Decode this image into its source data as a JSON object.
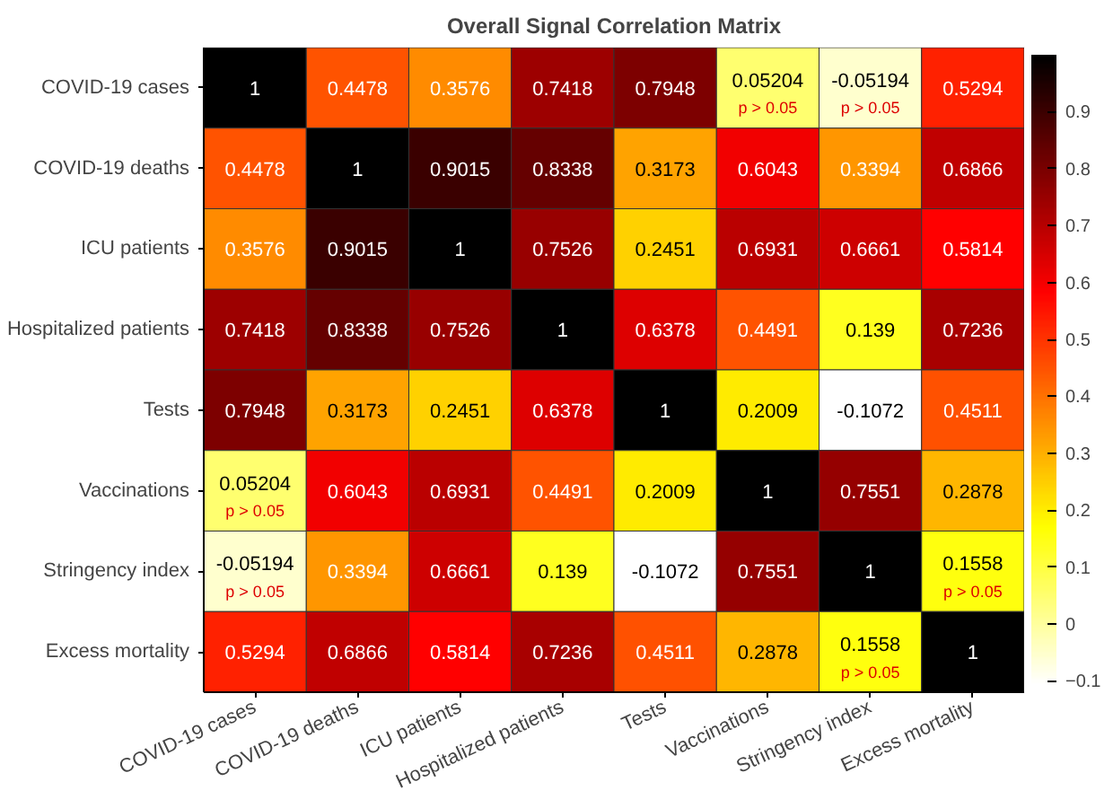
{
  "chart_data": {
    "type": "heatmap",
    "title": "Overall Signal Correlation Matrix",
    "categories": [
      "COVID-19 cases",
      "COVID-19 deaths",
      "ICU patients",
      "Hospitalized patients",
      "Tests",
      "Vaccinations",
      "Stringency index",
      "Excess mortality"
    ],
    "y_categories": [
      "COVID-19 cases",
      "COVID-19 deaths",
      "ICU patients",
      "Hospitalized patients",
      "Tests",
      "Vaccinations",
      "Stringency index",
      "Excess mortality"
    ],
    "cells": [
      [
        1,
        0.4478,
        0.3576,
        0.7418,
        0.7948,
        0.05204,
        -0.05194,
        0.5294
      ],
      [
        0.4478,
        1,
        0.9015,
        0.8338,
        0.3173,
        0.6043,
        0.3394,
        0.6866
      ],
      [
        0.3576,
        0.9015,
        1,
        0.7526,
        0.2451,
        0.6931,
        0.6661,
        0.5814
      ],
      [
        0.7418,
        0.8338,
        0.7526,
        1,
        0.6378,
        0.4491,
        0.139,
        0.7236
      ],
      [
        0.7948,
        0.3173,
        0.2451,
        0.6378,
        1,
        0.2009,
        -0.1072,
        0.4511
      ],
      [
        0.05204,
        0.6043,
        0.6931,
        0.4491,
        0.2009,
        1,
        0.7551,
        0.2878
      ],
      [
        -0.05194,
        0.3394,
        0.6661,
        0.139,
        -0.1072,
        0.7551,
        1,
        0.1558
      ],
      [
        0.5294,
        0.6866,
        0.5814,
        0.7236,
        0.4511,
        0.2878,
        0.1558,
        1
      ]
    ],
    "cell_labels": [
      [
        "1",
        "0.4478",
        "0.3576",
        "0.7418",
        "0.7948",
        "0.05204\np > 0.05",
        "-0.05194\np > 0.05",
        "0.5294"
      ],
      [
        "0.4478",
        "1",
        "0.9015",
        "0.8338",
        "0.3173",
        "0.6043",
        "0.3394",
        "0.6866"
      ],
      [
        "0.3576",
        "0.9015",
        "1",
        "0.7526",
        "0.2451",
        "0.6931",
        "0.6661",
        "0.5814"
      ],
      [
        "0.7418",
        "0.8338",
        "0.7526",
        "1",
        "0.6378",
        "0.4491",
        "0.139",
        "0.7236"
      ],
      [
        "0.7948",
        "0.3173",
        "0.2451",
        "0.6378",
        "1",
        "0.2009",
        "-0.1072",
        "0.4511"
      ],
      [
        "0.05204\np > 0.05",
        "0.6043",
        "0.6931",
        "0.4491",
        "0.2009",
        "1",
        "0.7551",
        "0.2878"
      ],
      [
        "-0.05194\np > 0.05",
        "0.3394",
        "0.6661",
        "0.139",
        "-0.1072",
        "0.7551",
        "1",
        "0.1558\np > 0.05"
      ],
      [
        "0.5294",
        "0.6866",
        "0.5814",
        "0.7236",
        "0.4511",
        "0.2878",
        "0.1558\np > 0.05",
        "1"
      ]
    ],
    "clim": [
      -0.1072,
      1
    ],
    "cticks": [
      -0.1,
      0,
      0.1,
      0.2,
      0.3,
      0.4,
      0.5,
      0.6,
      0.7,
      0.8,
      0.9
    ]
  }
}
